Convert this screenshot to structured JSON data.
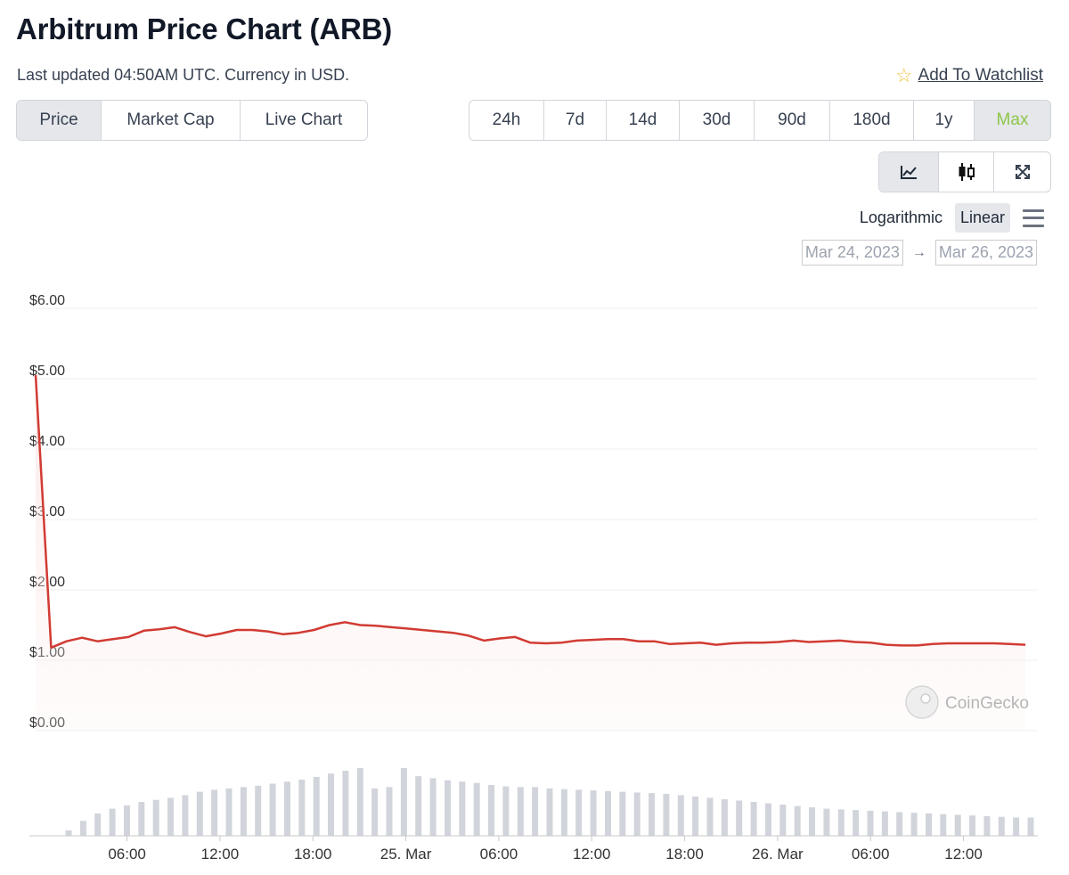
{
  "header": {
    "title": "Arbitrum Price Chart (ARB)",
    "subtitle": "Last updated 04:50AM UTC. Currency in USD.",
    "watchlist_label": "Add To Watchlist"
  },
  "type_tabs": [
    {
      "label": "Price",
      "active": true
    },
    {
      "label": "Market Cap",
      "active": false
    },
    {
      "label": "Live Chart",
      "active": false
    }
  ],
  "range_tabs": [
    {
      "label": "24h",
      "active": false
    },
    {
      "label": "7d",
      "active": false
    },
    {
      "label": "14d",
      "active": false
    },
    {
      "label": "30d",
      "active": false
    },
    {
      "label": "90d",
      "active": false
    },
    {
      "label": "180d",
      "active": false
    },
    {
      "label": "1y",
      "active": false
    },
    {
      "label": "Max",
      "active": true
    }
  ],
  "chart_icons": [
    "line-chart-icon",
    "candlestick-icon",
    "fullscreen-icon"
  ],
  "scale": {
    "logarithmic": "Logarithmic",
    "linear": "Linear",
    "active": "linear"
  },
  "date_range": {
    "from": "Mar 24, 2023",
    "to": "Mar 26, 2023",
    "arrow": "→"
  },
  "watermark": "CoinGecko",
  "chart_data": {
    "type": "line",
    "series": [
      {
        "values": [
          5.05,
          1.18,
          1.27,
          1.32,
          1.27,
          1.3,
          1.33,
          1.42,
          1.44,
          1.47,
          1.4,
          1.34,
          1.38,
          1.43,
          1.43,
          1.41,
          1.37,
          1.39,
          1.43,
          1.5,
          1.54,
          1.5,
          1.49,
          1.47,
          1.45,
          1.43,
          1.41,
          1.39,
          1.35,
          1.28,
          1.31,
          1.33,
          1.25,
          1.24,
          1.25,
          1.28,
          1.29,
          1.3,
          1.3,
          1.27,
          1.27,
          1.23,
          1.24,
          1.25,
          1.22,
          1.24,
          1.25,
          1.25,
          1.26,
          1.28,
          1.26,
          1.27,
          1.28,
          1.26,
          1.25,
          1.22,
          1.21,
          1.21,
          1.23,
          1.24,
          1.24,
          1.24,
          1.24,
          1.23,
          1.22
        ],
        "color": "#d13b33"
      }
    ],
    "volume": [
      0.08,
      0.22,
      0.33,
      0.4,
      0.45,
      0.5,
      0.53,
      0.56,
      0.6,
      0.65,
      0.68,
      0.7,
      0.72,
      0.74,
      0.77,
      0.8,
      0.83,
      0.87,
      0.92,
      0.96,
      1.0,
      0.7,
      0.72,
      1.0,
      0.88,
      0.85,
      0.82,
      0.8,
      0.78,
      0.75,
      0.73,
      0.72,
      0.72,
      0.7,
      0.69,
      0.68,
      0.67,
      0.66,
      0.65,
      0.64,
      0.63,
      0.62,
      0.6,
      0.58,
      0.56,
      0.54,
      0.52,
      0.5,
      0.48,
      0.46,
      0.44,
      0.42,
      0.4,
      0.39,
      0.38,
      0.37,
      0.36,
      0.35,
      0.34,
      0.33,
      0.32,
      0.31,
      0.3,
      0.29,
      0.28,
      0.27,
      0.27
    ],
    "y_ticks": [
      "$6.00",
      "$5.00",
      "$4.00",
      "$3.00",
      "$2.00",
      "$1.00",
      "$0.00"
    ],
    "ylim": [
      0,
      6
    ],
    "x_ticks": [
      "06:00",
      "12:00",
      "18:00",
      "25. Mar",
      "06:00",
      "12:00",
      "18:00",
      "26. Mar",
      "06:00",
      "12:00"
    ],
    "x_tick_hours": [
      6,
      12,
      18,
      24,
      30,
      36,
      42,
      48,
      54,
      60
    ],
    "x_range_hours": [
      0.1,
      64.8
    ],
    "grid": true
  }
}
